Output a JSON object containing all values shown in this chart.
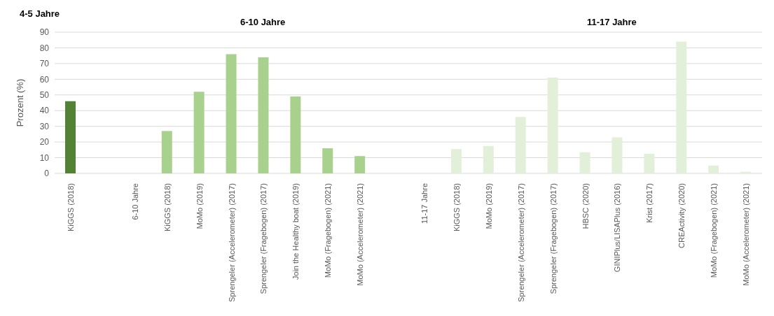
{
  "chart_data": {
    "type": "bar",
    "ylabel": "Prozent (%)",
    "annotations": [
      "4-5 Jahre",
      "6-10 Jahre",
      "11-17 Jahre"
    ],
    "categories": [
      "KiGGS (2018)",
      null,
      "6-10 Jahre",
      "KiGGS (2018)",
      "MoMo (2019)",
      "Sprengeler (Accelerometer) (2017)",
      "Sprengeler (Fragebogen) (2017)",
      "Join the Healthy boat (2019)",
      "MoMo (Fragebogen) (2021)",
      "MoMo (Accelerometer) (2021)",
      null,
      "11-17 Jahre",
      "KiGGS (2018)",
      "MoMo (2019)",
      "Sprengeler (Accelerometer) (2017)",
      "Sprengeler (Fragebogen) (2017)",
      "HBSC (2020)",
      "GINIPlus/LISAPlus (2016)",
      "Krist (2017)",
      "CREActivity (2020)",
      "MoMo (Fragebogen) (2021)",
      "MoMo (Accelerometer) (2021)"
    ],
    "values": [
      46,
      null,
      null,
      27,
      52,
      76,
      74,
      49,
      16,
      11,
      null,
      null,
      15.5,
      17.5,
      36,
      61,
      13.5,
      23,
      12.5,
      84,
      5,
      1
    ],
    "colors": [
      "#548235",
      "#a9d18e",
      "#a9d18e",
      "#a9d18e",
      "#a9d18e",
      "#a9d18e",
      "#a9d18e",
      "#a9d18e",
      "#a9d18e",
      "#a9d18e",
      "#e2f0d9",
      "#e2f0d9",
      "#e2f0d9",
      "#e2f0d9",
      "#e2f0d9",
      "#e2f0d9",
      "#e2f0d9",
      "#e2f0d9",
      "#e2f0d9",
      "#e2f0d9",
      "#e2f0d9",
      "#e2f0d9"
    ],
    "ylim": [
      0,
      90
    ],
    "yticks": [
      0,
      10,
      20,
      30,
      40,
      50,
      60,
      70,
      80,
      90
    ],
    "grid": "y"
  }
}
